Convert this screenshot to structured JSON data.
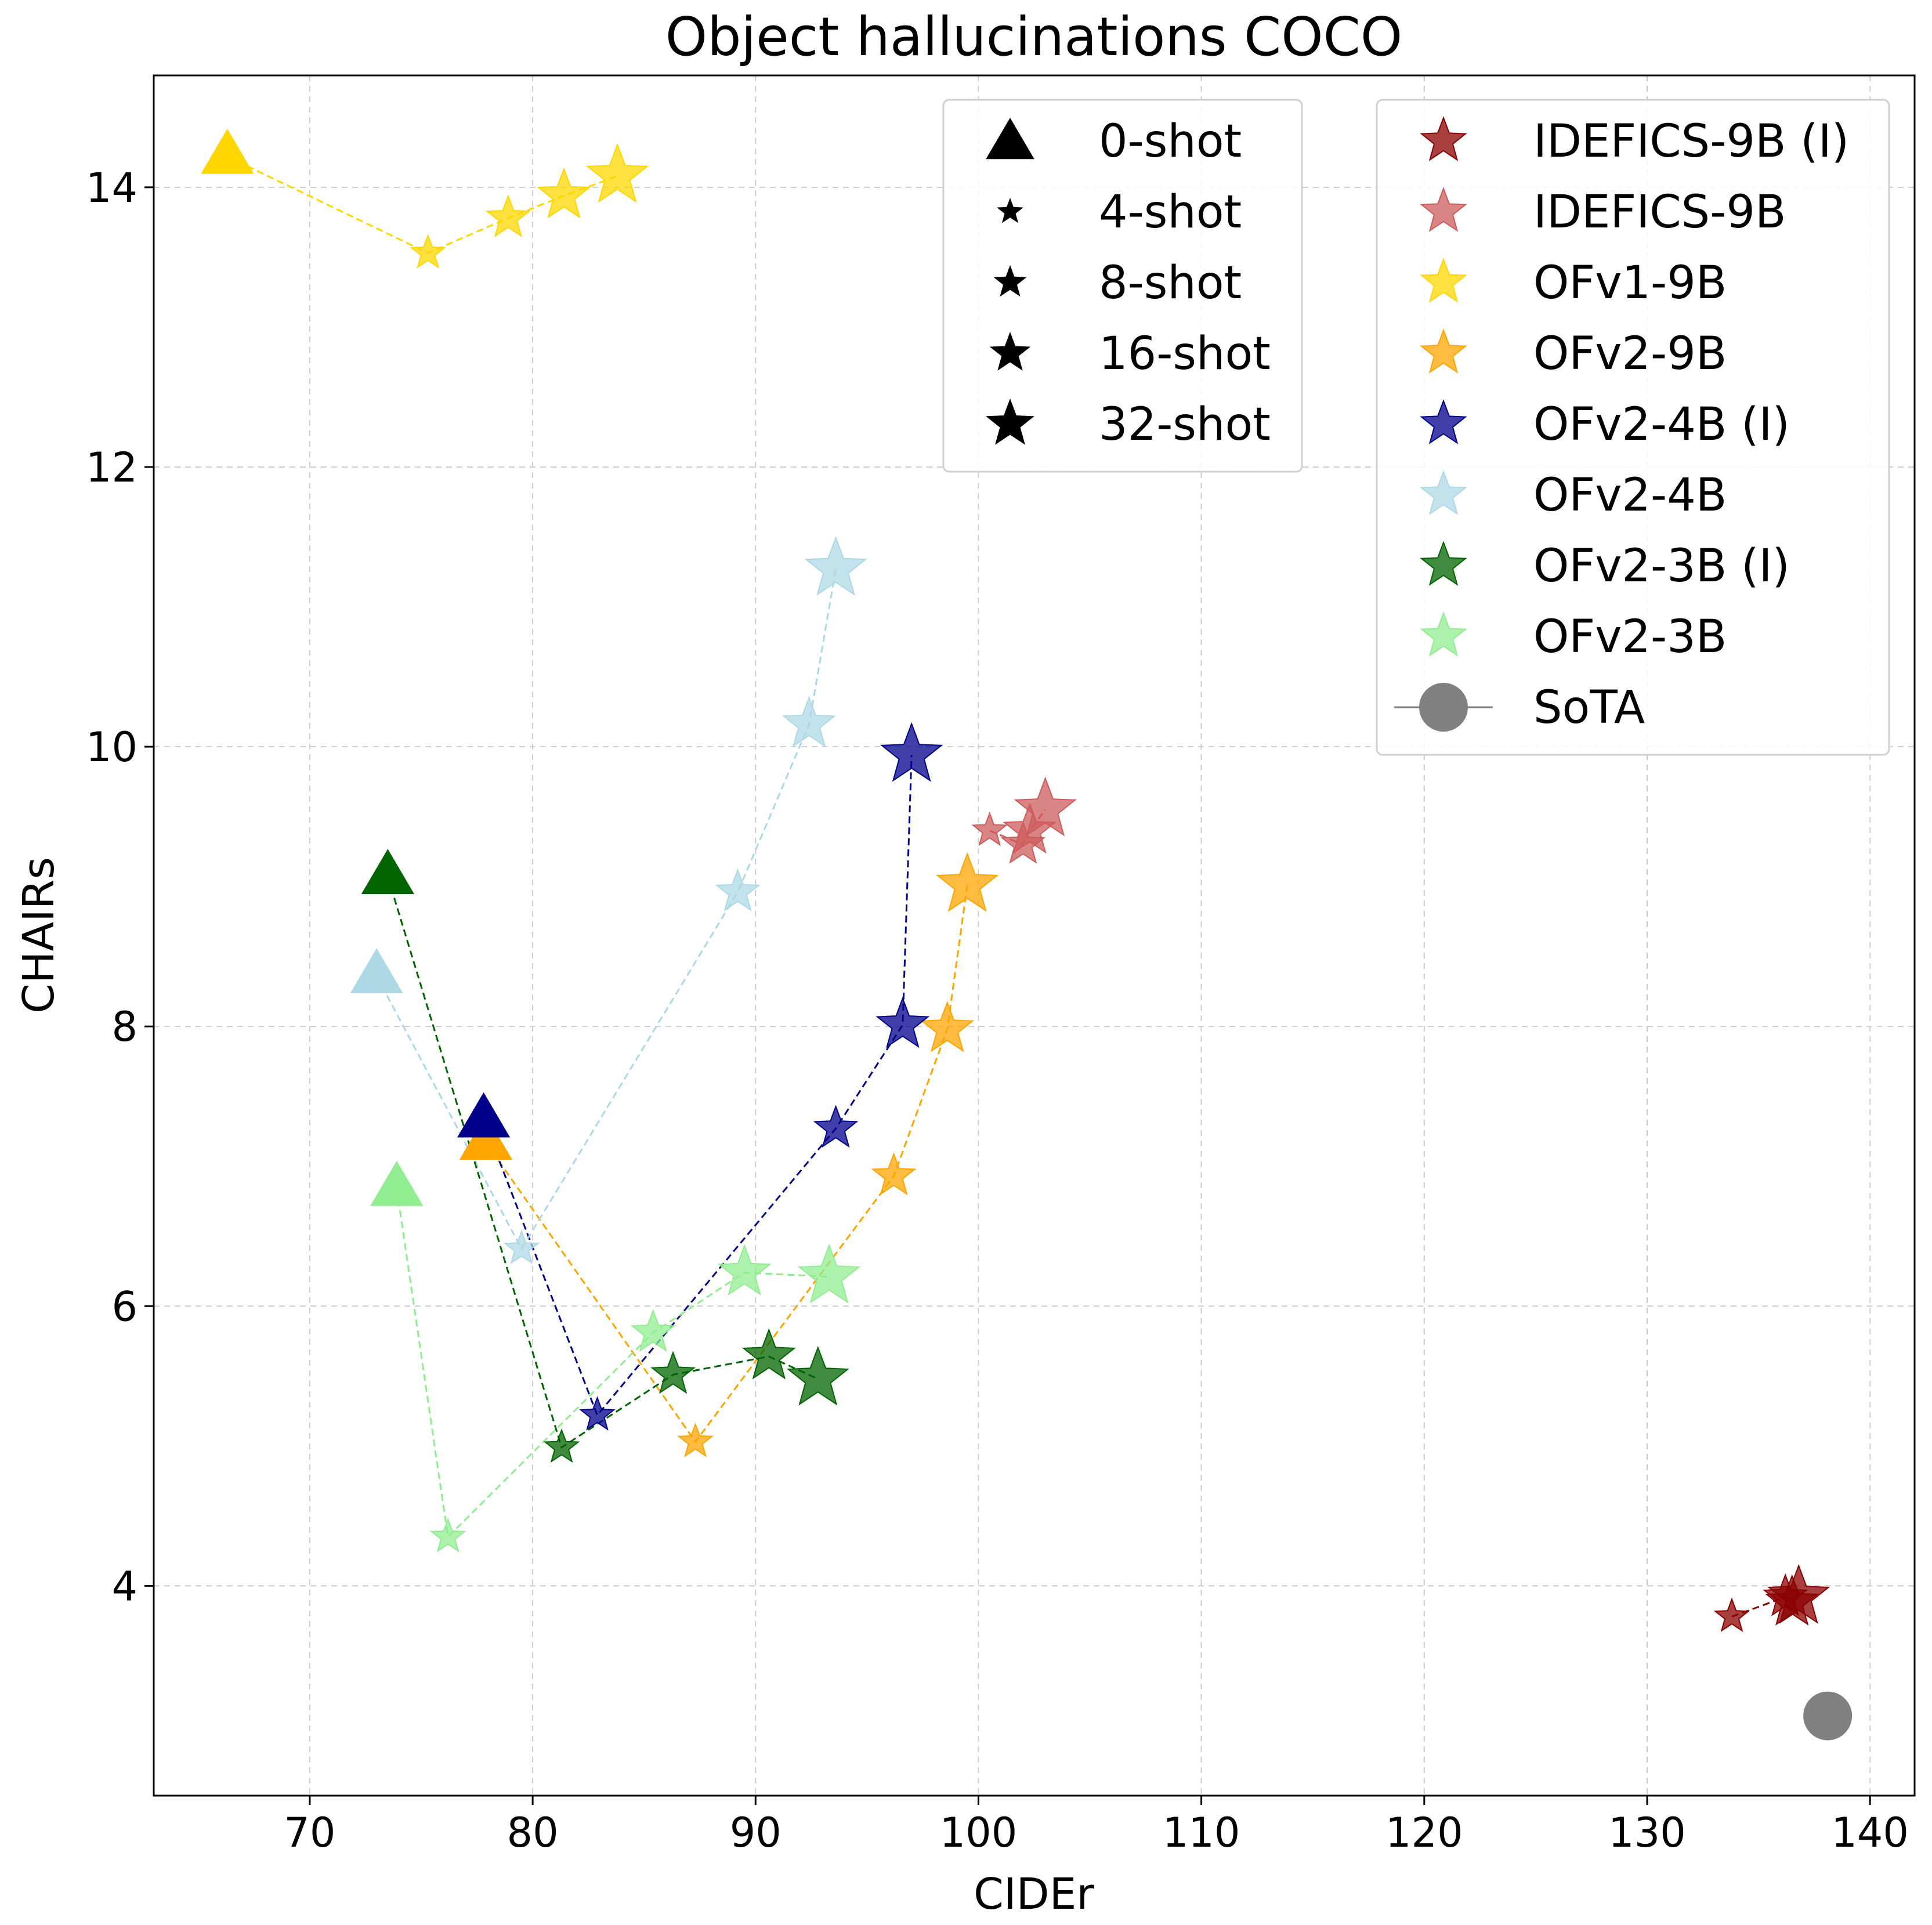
{
  "chart_data": {
    "type": "scatter",
    "title": "Object hallucinations COCO",
    "xlabel": "CIDEr",
    "ylabel": "CHAIRs",
    "xlim": [
      63,
      142
    ],
    "ylim": [
      2.5,
      14.8
    ],
    "xticks": [
      70,
      80,
      90,
      100,
      110,
      120,
      130,
      140
    ],
    "yticks": [
      4,
      6,
      8,
      10,
      12,
      14
    ],
    "grid": true,
    "shot_legend": {
      "placement": "top-center",
      "entries": [
        {
          "label": "0-shot",
          "marker": "triangle"
        },
        {
          "label": "4-shot",
          "marker": "star"
        },
        {
          "label": "8-shot",
          "marker": "star"
        },
        {
          "label": "16-shot",
          "marker": "star"
        },
        {
          "label": "32-shot",
          "marker": "star"
        }
      ]
    },
    "model_legend_placement": "top-right",
    "series": [
      {
        "name": "IDEFICS-9B (I)",
        "color": "#8b0000",
        "points": [
          [
            133.8,
            3.78
          ],
          [
            136.2,
            3.92
          ],
          [
            136.5,
            3.88
          ],
          [
            136.8,
            3.92
          ]
        ]
      },
      {
        "name": "IDEFICS-9B",
        "color": "#cd5c5c",
        "points": [
          [
            100.5,
            9.4
          ],
          [
            102.0,
            9.3
          ],
          [
            102.3,
            9.4
          ],
          [
            103.0,
            9.55
          ]
        ]
      },
      {
        "name": "OFv1-9B",
        "color": "#ffd700",
        "points": [
          [
            66.3,
            14.22
          ],
          [
            75.3,
            13.53
          ],
          [
            78.9,
            13.78
          ],
          [
            81.4,
            13.94
          ],
          [
            83.8,
            14.08
          ]
        ]
      },
      {
        "name": "OFv2-9B",
        "color": "#ffa500",
        "points": [
          [
            77.9,
            7.17
          ],
          [
            87.3,
            5.03
          ],
          [
            96.2,
            6.93
          ],
          [
            98.6,
            7.98
          ],
          [
            99.5,
            9.01
          ]
        ]
      },
      {
        "name": "OFv2-4B (I)",
        "color": "#00008b",
        "points": [
          [
            77.8,
            7.33
          ],
          [
            82.9,
            5.22
          ],
          [
            93.6,
            7.27
          ],
          [
            96.6,
            8.01
          ],
          [
            97.0,
            9.94
          ]
        ]
      },
      {
        "name": "OFv2-4B",
        "color": "#add8e6",
        "points": [
          [
            73.0,
            8.36
          ],
          [
            79.5,
            6.41
          ],
          [
            89.2,
            8.96
          ],
          [
            92.4,
            10.16
          ],
          [
            93.6,
            11.27
          ]
        ]
      },
      {
        "name": "OFv2-3B (I)",
        "color": "#006400",
        "points": [
          [
            73.5,
            9.07
          ],
          [
            81.3,
            4.99
          ],
          [
            86.3,
            5.51
          ],
          [
            90.6,
            5.64
          ],
          [
            92.8,
            5.48
          ]
        ]
      },
      {
        "name": "OFv2-3B",
        "color": "#90ee90",
        "points": [
          [
            73.9,
            6.84
          ],
          [
            76.2,
            4.35
          ],
          [
            85.4,
            5.81
          ],
          [
            89.5,
            6.24
          ],
          [
            93.3,
            6.21
          ]
        ]
      },
      {
        "name": "SoTA",
        "color": "#808080",
        "points": [
          [
            138.1,
            3.07
          ]
        ]
      }
    ]
  }
}
